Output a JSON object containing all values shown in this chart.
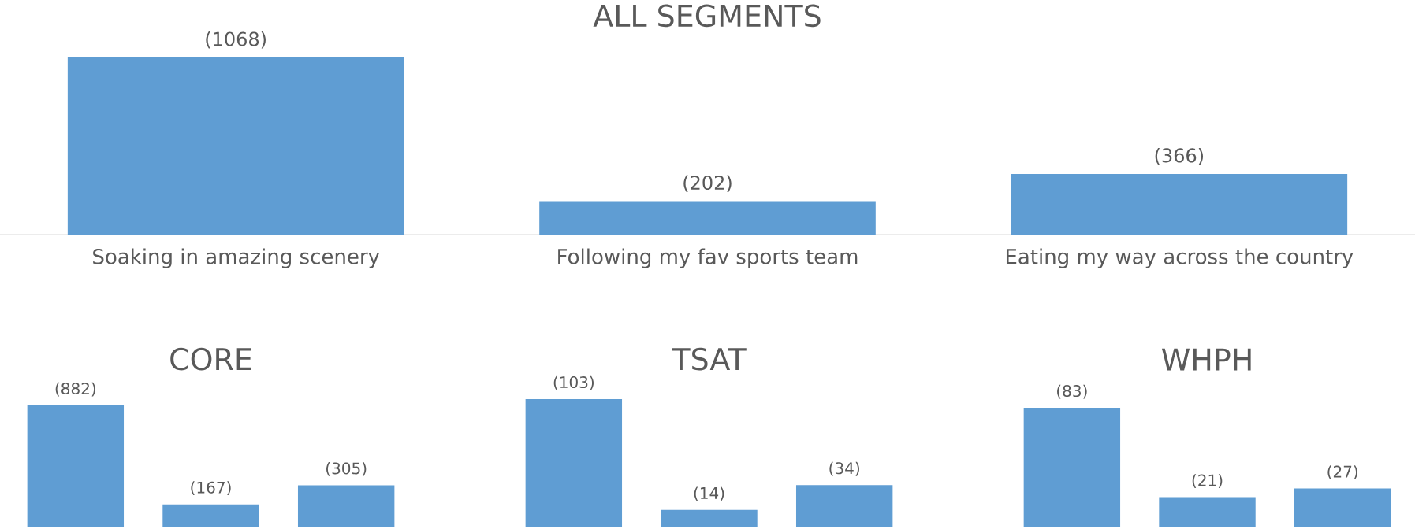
{
  "chart_data": [
    {
      "type": "bar",
      "title": "ALL SEGMENTS",
      "categories": [
        "Soaking in amazing scenery",
        "Following my fav sports team",
        "Eating my way across the country"
      ],
      "values": [
        1068,
        202,
        366
      ],
      "value_labels": [
        "(1068)",
        "(202)",
        "(366)"
      ],
      "color": "#5f9dd3"
    },
    {
      "type": "bar",
      "title": "CORE",
      "categories": [
        null,
        null,
        null
      ],
      "values": [
        882,
        167,
        305
      ],
      "value_labels": [
        "(882)",
        "(167)",
        "(305)"
      ],
      "color": "#5f9dd3"
    },
    {
      "type": "bar",
      "title": "TSAT",
      "categories": [
        null,
        null,
        null
      ],
      "values": [
        103,
        14,
        34
      ],
      "value_labels": [
        "(103)",
        "(14)",
        "(34)"
      ],
      "color": "#5f9dd3"
    },
    {
      "type": "bar",
      "title": "WHPH",
      "categories": [
        null,
        null,
        null
      ],
      "values": [
        83,
        21,
        27
      ],
      "value_labels": [
        "(83)",
        "(21)",
        "(27)"
      ],
      "color": "#5f9dd3"
    }
  ]
}
